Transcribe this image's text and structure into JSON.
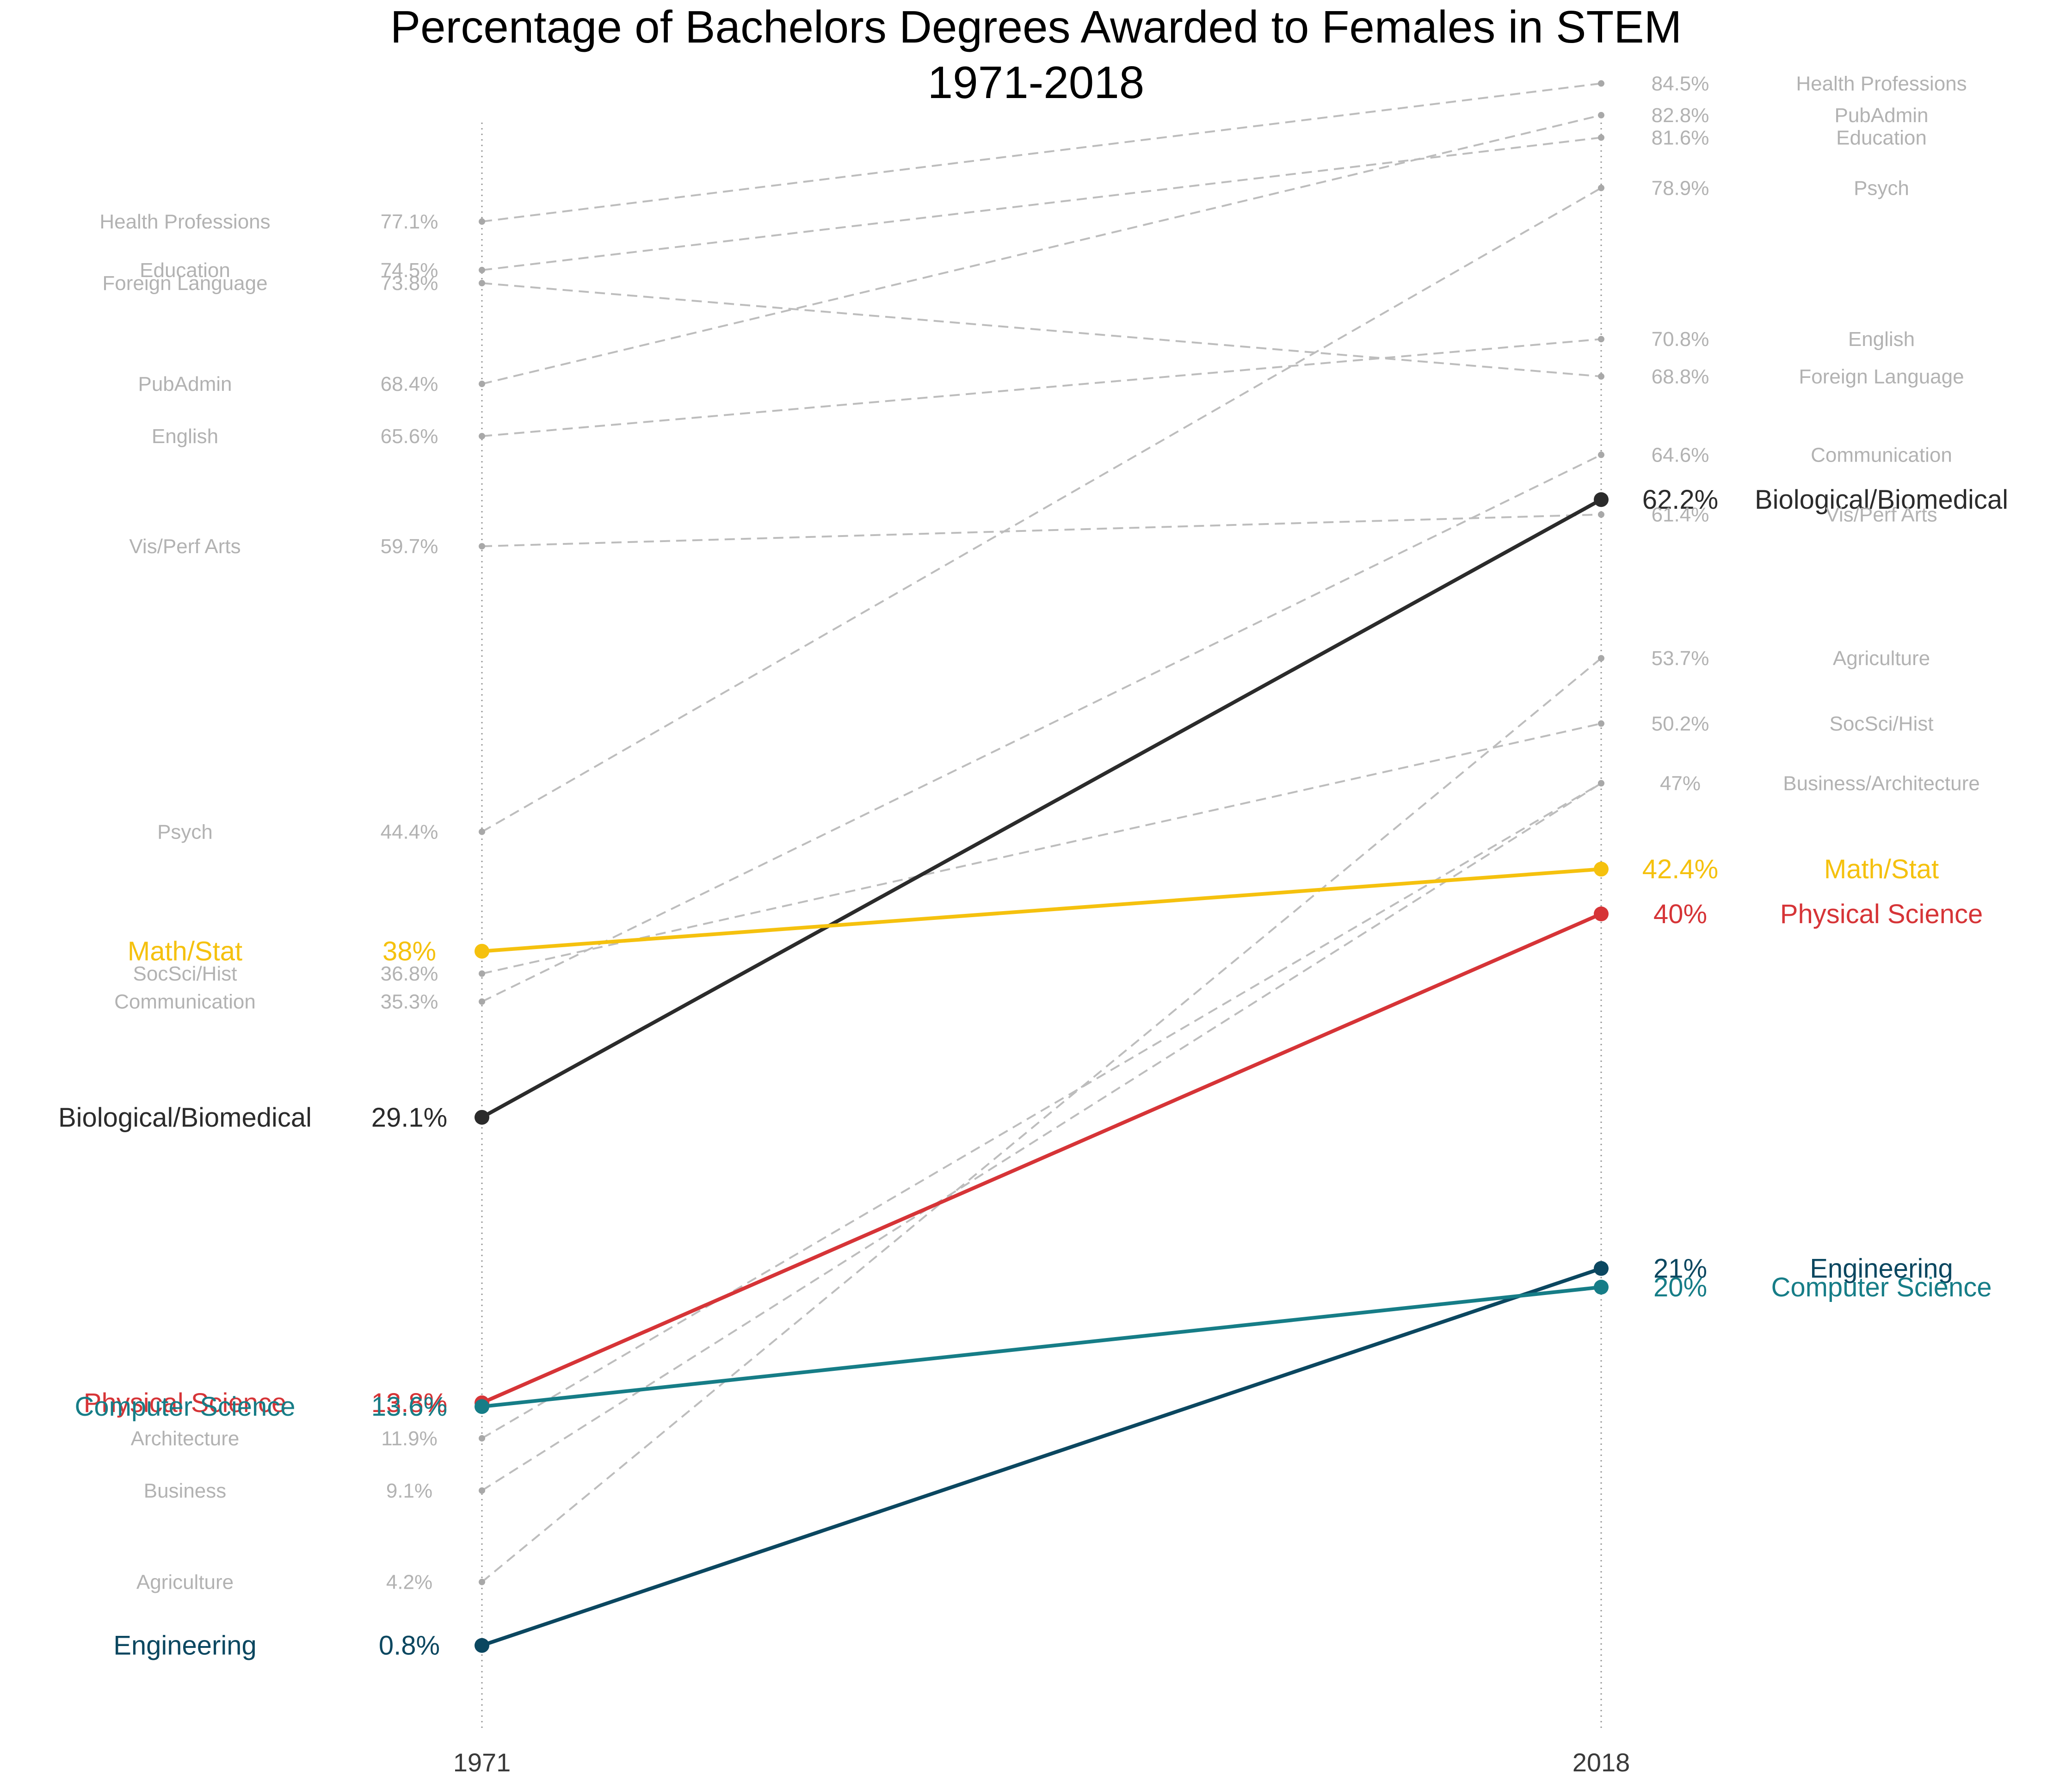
{
  "chart_data": {
    "type": "slope",
    "title": [
      "Percentage of Bachelors Degrees Awarded to Females in STEM",
      "1971-2018"
    ],
    "x": [
      "1971",
      "2018"
    ],
    "ylim": [
      0,
      90
    ],
    "grid": false,
    "value_suffix": "%",
    "background_color": "#bdbdbd",
    "series": [
      {
        "name": "Health Professions",
        "start": 77.1,
        "end": 84.5,
        "highlight": false
      },
      {
        "name": "PubAdmin",
        "start": 68.4,
        "end": 82.8,
        "highlight": false
      },
      {
        "name": "Education",
        "start": 74.5,
        "end": 81.6,
        "highlight": false
      },
      {
        "name": "Psych",
        "start": 44.4,
        "end": 78.9,
        "highlight": false
      },
      {
        "name": "English",
        "start": 65.6,
        "end": 70.8,
        "highlight": false
      },
      {
        "name": "Foreign Language",
        "start": 73.8,
        "end": 68.8,
        "highlight": false
      },
      {
        "name": "Communication",
        "start": 35.3,
        "end": 64.6,
        "highlight": false
      },
      {
        "name": "Vis/Perf Arts",
        "start": 59.7,
        "end": 61.4,
        "highlight": false
      },
      {
        "name": "Agriculture",
        "start": 4.2,
        "end": 53.7,
        "highlight": false
      },
      {
        "name": "SocSci/Hist",
        "start": 36.8,
        "end": 50.2,
        "highlight": false
      },
      {
        "name": "Business",
        "start": 9.1,
        "end": 47,
        "highlight": false
      },
      {
        "name": "Architecture",
        "start": 11.9,
        "end": 47,
        "highlight": false
      },
      {
        "name": "Biological/Biomedical",
        "start": 29.1,
        "end": 62.2,
        "highlight": true,
        "color": "#2b2b2b"
      },
      {
        "name": "Math/Stat",
        "start": 38,
        "end": 42.4,
        "highlight": true,
        "color": "#f5c10e"
      },
      {
        "name": "Physical Science",
        "start": 13.8,
        "end": 40,
        "highlight": true,
        "color": "#d63437"
      },
      {
        "name": "Engineering",
        "start": 0.8,
        "end": 21,
        "highlight": true,
        "color": "#0b4760"
      },
      {
        "name": "Computer Science",
        "start": 13.6,
        "end": 20,
        "highlight": true,
        "color": "#167d87"
      }
    ],
    "right_labels": [
      {
        "name": "Health Professions",
        "value": "84.5%",
        "highlight": false
      },
      {
        "name": "PubAdmin",
        "value": "82.8%",
        "highlight": false
      },
      {
        "name": "Education",
        "value": "81.6%",
        "highlight": false
      },
      {
        "name": "Psych",
        "value": "78.9%",
        "highlight": false
      },
      {
        "name": "English",
        "value": "70.8%",
        "highlight": false
      },
      {
        "name": "Foreign Language",
        "value": "68.8%",
        "highlight": false
      },
      {
        "name": "Communication",
        "value": "64.6%",
        "highlight": false
      },
      {
        "name": "Biological/Biomedical",
        "value": "62.2%",
        "highlight": true,
        "color": "#2b2b2b"
      },
      {
        "name": "Vis/Perf Arts",
        "value": "61.4%",
        "highlight": false
      },
      {
        "name": "Agriculture",
        "value": "53.7%",
        "highlight": false
      },
      {
        "name": "SocSci/Hist",
        "value": "50.2%",
        "highlight": false
      },
      {
        "name": "Business/Architecture",
        "value": "47%",
        "highlight": false
      },
      {
        "name": "Math/Stat",
        "value": "42.4%",
        "highlight": true,
        "color": "#f5c10e"
      },
      {
        "name": "Physical Science",
        "value": "40%",
        "highlight": true,
        "color": "#d63437"
      },
      {
        "name": "Engineering",
        "value": "21%",
        "highlight": true,
        "color": "#0b4760"
      },
      {
        "name": "Computer Science",
        "value": "20%",
        "highlight": true,
        "color": "#167d87"
      }
    ],
    "left_labels": [
      {
        "name": "Health Professions",
        "value": "77.1%",
        "highlight": false
      },
      {
        "name": "Education",
        "value": "74.5%",
        "highlight": false
      },
      {
        "name": "Foreign Language",
        "value": "73.8%",
        "highlight": false
      },
      {
        "name": "PubAdmin",
        "value": "68.4%",
        "highlight": false
      },
      {
        "name": "English",
        "value": "65.6%",
        "highlight": false
      },
      {
        "name": "Vis/Perf Arts",
        "value": "59.7%",
        "highlight": false
      },
      {
        "name": "Psych",
        "value": "44.4%",
        "highlight": false
      },
      {
        "name": "Math/Stat",
        "value": "38%",
        "highlight": true,
        "color": "#f5c10e"
      },
      {
        "name": "SocSci/Hist",
        "value": "36.8%",
        "highlight": false
      },
      {
        "name": "Communication",
        "value": "35.3%",
        "highlight": false
      },
      {
        "name": "Biological/Biomedical",
        "value": "29.1%",
        "highlight": true,
        "color": "#2b2b2b"
      },
      {
        "name": "Physical Science",
        "value": "13.8%",
        "highlight": true,
        "color": "#d63437"
      },
      {
        "name": "Computer Science",
        "value": "13.6%",
        "highlight": true,
        "color": "#167d87"
      },
      {
        "name": "Architecture",
        "value": "11.9%",
        "highlight": false
      },
      {
        "name": "Business",
        "value": "9.1%",
        "highlight": false
      },
      {
        "name": "Agriculture",
        "value": "4.2%",
        "highlight": false
      },
      {
        "name": "Engineering",
        "value": "0.8%",
        "highlight": true,
        "color": "#0b4760"
      }
    ]
  }
}
